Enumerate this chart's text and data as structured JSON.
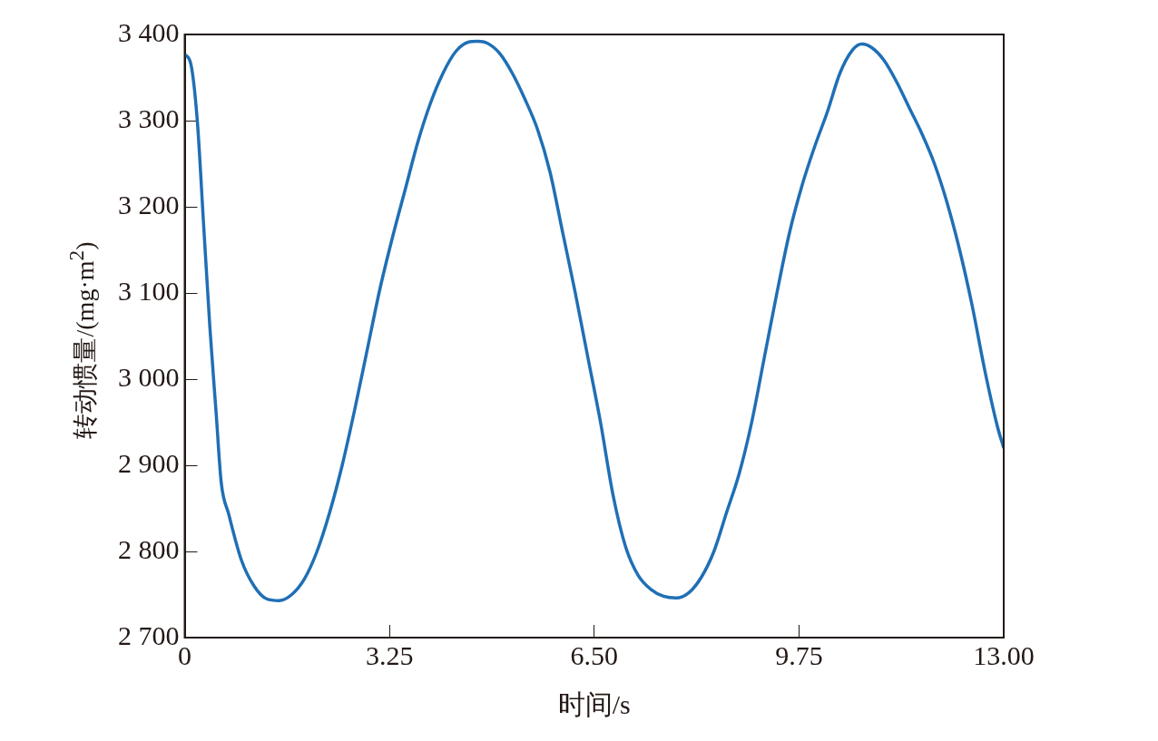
{
  "chart_data": {
    "type": "line",
    "xlabel": "时间/s",
    "ylabel": "转动惯量/(mg·m$^{2}$)",
    "xlim": [
      0,
      13
    ],
    "xticks": [
      0,
      {
        "value": 3.25,
        "label": "3.25"
      },
      {
        "value": 6.5,
        "label": "6.50"
      },
      {
        "value": 9.75,
        "label": "9.75"
      },
      {
        "value": 13,
        "label": "13.00"
      }
    ],
    "ylim": [
      2700,
      3400
    ],
    "yticks": [
      {
        "value": 2700,
        "label": "2 700"
      },
      {
        "value": 2800,
        "label": "2 800"
      },
      {
        "value": 2900,
        "label": "2 900"
      },
      {
        "value": 3000,
        "label": "3 000"
      },
      {
        "value": 3100,
        "label": "3 100"
      },
      {
        "value": 3200,
        "label": "3 200"
      },
      {
        "value": 3300,
        "label": "3 300"
      },
      {
        "value": 3400,
        "label": "3 400"
      }
    ],
    "grid": false,
    "legend": false,
    "marker": "none",
    "line_style": "solid",
    "series": [
      {
        "color": "#1f6fb5",
        "x": [
          0,
          0.1,
          0.2,
          0.3,
          0.4,
          0.5,
          0.58,
          0.7,
          0.9,
          1.1,
          1.3,
          1.5,
          1.7,
          1.9,
          2.1,
          2.3,
          2.5,
          2.7,
          2.9,
          3.1,
          3.3,
          3.5,
          3.7,
          3.9,
          4.1,
          4.3,
          4.5,
          4.65,
          4.8,
          5.0,
          5.2,
          5.4,
          5.6,
          5.8,
          6.0,
          6.2,
          6.4,
          6.6,
          6.8,
          7.0,
          7.2,
          7.4,
          7.6,
          7.8,
          8.0,
          8.2,
          8.4,
          8.6,
          8.8,
          9.0,
          9.2,
          9.4,
          9.6,
          9.8,
          10.0,
          10.2,
          10.4,
          10.6,
          10.75,
          10.9,
          11.1,
          11.3,
          11.5,
          11.7,
          11.9,
          12.1,
          12.3,
          12.5,
          12.7,
          12.9,
          13.0
        ],
        "values": [
          3377,
          3365,
          3300,
          3180,
          3060,
          2960,
          2880,
          2843,
          2790,
          2760,
          2745,
          2743,
          2750,
          2768,
          2800,
          2845,
          2900,
          2965,
          3035,
          3105,
          3165,
          3220,
          3275,
          3320,
          3355,
          3380,
          3391,
          3392,
          3390,
          3378,
          3355,
          3325,
          3290,
          3240,
          3170,
          3100,
          3025,
          2950,
          2865,
          2805,
          2772,
          2756,
          2748,
          2746,
          2752,
          2770,
          2800,
          2845,
          2890,
          2950,
          3025,
          3100,
          3170,
          3225,
          3270,
          3310,
          3355,
          3382,
          3389,
          3385,
          3370,
          3345,
          3315,
          3285,
          3250,
          3205,
          3150,
          3085,
          3010,
          2945,
          2920
        ]
      }
    ]
  }
}
